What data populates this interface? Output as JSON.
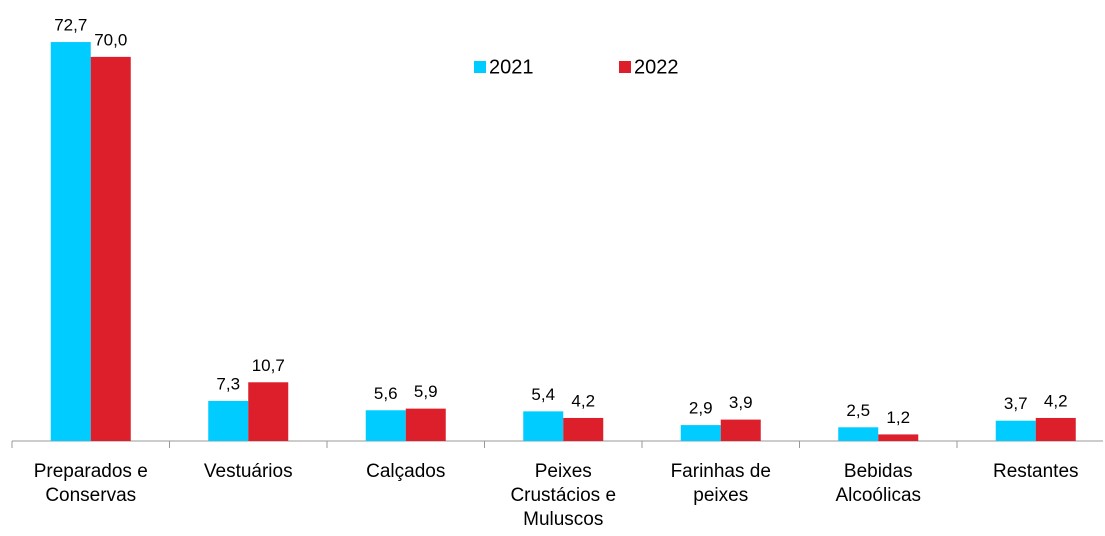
{
  "chart_data": {
    "type": "bar",
    "categories": [
      [
        "Preparados e",
        "Conservas"
      ],
      [
        "Vestuários"
      ],
      [
        "Calçados"
      ],
      [
        "Peixes",
        "Crustácios e",
        "Muluscos"
      ],
      [
        "Farinhas de",
        "peixes"
      ],
      [
        "Bebidas",
        "Alcoólicas"
      ],
      [
        "Restantes"
      ]
    ],
    "series": [
      {
        "name": "2021",
        "color": "#00ccff",
        "values": [
          72.7,
          7.3,
          5.6,
          5.4,
          2.9,
          2.5,
          3.7
        ],
        "value_labels": [
          "72,7",
          "7,3",
          "5,6",
          "5,4",
          "2,9",
          "2,5",
          "3,7"
        ]
      },
      {
        "name": "2022",
        "color": "#dc1f2a",
        "values": [
          70.0,
          10.7,
          5.9,
          4.2,
          3.9,
          1.2,
          4.2
        ],
        "value_labels": [
          "70,0",
          "10,7",
          "5,9",
          "4,2",
          "3,9",
          "1,2",
          "4,2"
        ]
      }
    ],
    "ylim": [
      0,
      80
    ],
    "legend": "top"
  }
}
